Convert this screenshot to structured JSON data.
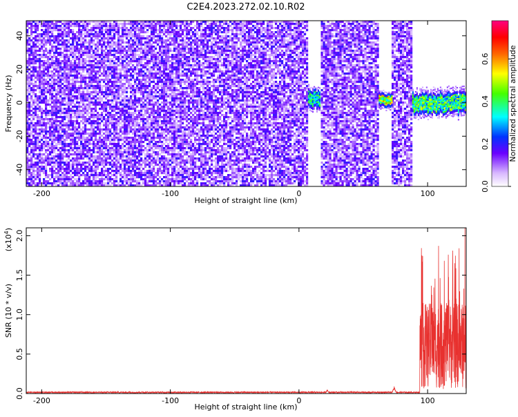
{
  "title": "C2E4.2023.272.02.10.R02",
  "chart_data": [
    {
      "type": "heatmap",
      "xlabel": "Height of straight line (km)",
      "ylabel": "Frequency (Hz)",
      "xlim": [
        -212,
        130
      ],
      "ylim": [
        -50,
        49
      ],
      "x_ticks": [
        -200,
        -100,
        0,
        100
      ],
      "y_ticks": [
        -40,
        -20,
        0,
        20,
        40
      ],
      "colorbar": {
        "label": "Normalized spectral amplitude",
        "range": [
          0,
          0.78
        ],
        "ticks": [
          0.0,
          0.2,
          0.4,
          0.6
        ],
        "tick_labels": [
          "0.0",
          "0.2",
          "0.4",
          "0.6"
        ],
        "colormap": "rainbow (white to purple to blue to cyan to green to yellow to red to magenta)"
      },
      "noise_fill_ranges_km": [
        [
          -212,
          7
        ],
        [
          17,
          62
        ],
        [
          72,
          88
        ]
      ],
      "signal_regions": [
        {
          "x_range": [
            7,
            16
          ],
          "freq_center": 3,
          "freq_halfwidth": 4,
          "level": 0.35
        },
        {
          "x_range": [
            62,
            72
          ],
          "freq_center": 2,
          "freq_halfwidth": 3,
          "level": 0.5
        },
        {
          "x_range": [
            88,
            130
          ],
          "freq_center": 0,
          "freq_halfwidth": 5,
          "level": 0.4
        }
      ]
    },
    {
      "type": "line",
      "xlabel": "Height of straight line (km)",
      "ylabel": "SNR (10 * v/v)",
      "y_multiplier": "(x10",
      "y_multiplier_exp": "4",
      "xlim": [
        -212,
        130
      ],
      "ylim": [
        0,
        2.1
      ],
      "x_ticks": [
        -200,
        -100,
        0,
        100
      ],
      "y_ticks": [
        0.0,
        0.5,
        1.0,
        1.5,
        2.0
      ],
      "y_tick_labels": [
        "0.0",
        "0.5",
        "1.0",
        "1.5",
        "2.0"
      ],
      "series": [
        {
          "color": "#e8312f",
          "baseline_level": 0.015,
          "features": [
            {
              "x": 22,
              "y": 0.05
            },
            {
              "x": 74,
              "y": 0.09
            },
            {
              "x_start": 94,
              "x_end": 130,
              "y_min": 0.05,
              "y_max": 1.95,
              "typical": 0.85
            },
            {
              "x": 129,
              "y": 2.1
            }
          ]
        }
      ]
    }
  ]
}
